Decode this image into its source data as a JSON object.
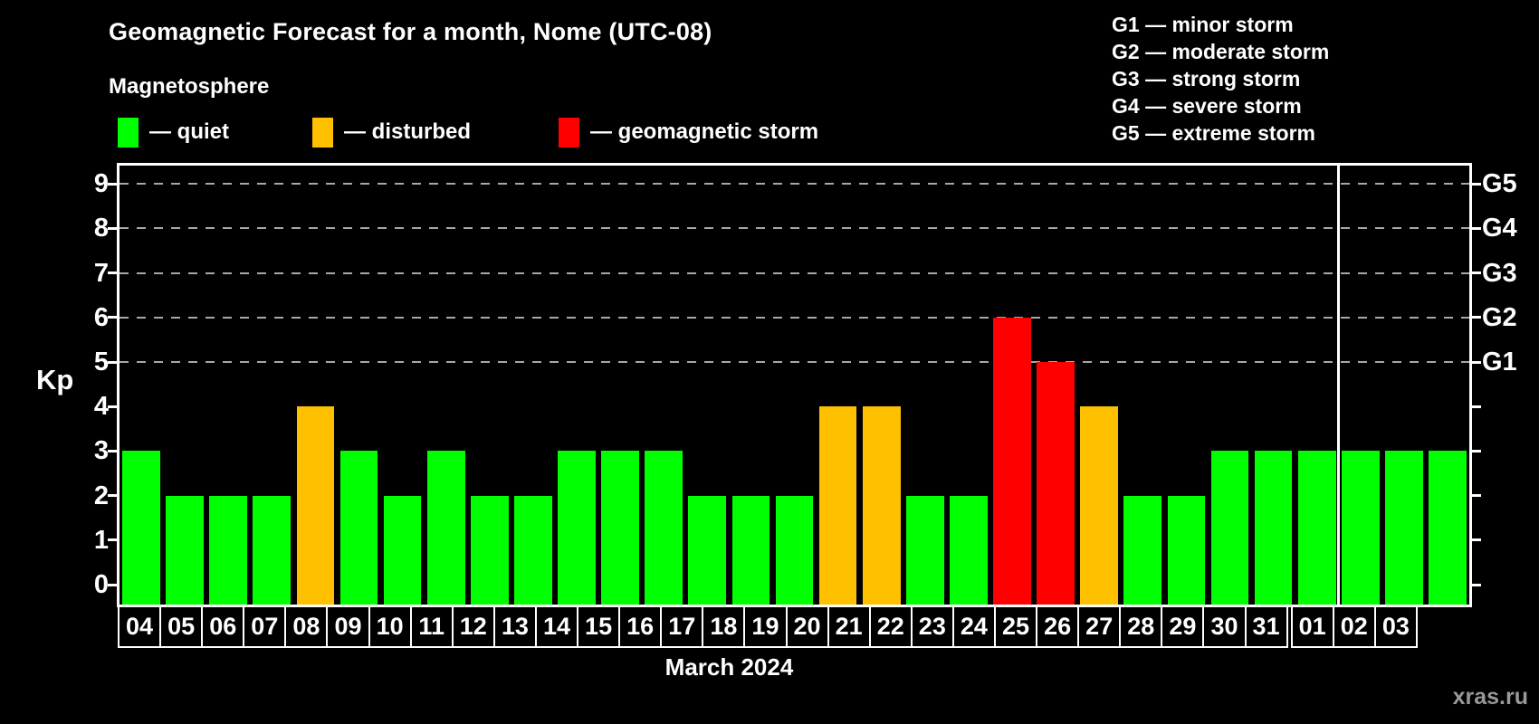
{
  "header": {
    "title": "Geomagnetic Forecast for a month, Nome (UTC-08)",
    "subtitle": "Magnetosphere"
  },
  "legend": {
    "items": [
      {
        "name": "quiet",
        "color": "#00ff00",
        "label": "— quiet"
      },
      {
        "name": "disturbed",
        "color": "#ffc000",
        "label": "— disturbed"
      },
      {
        "name": "storm",
        "color": "#ff0000",
        "label": "— geomagnetic storm"
      }
    ]
  },
  "storm_scale_legend": {
    "lines": [
      "G1 — minor storm",
      "G2 — moderate storm",
      "G3 — strong storm",
      "G4 — severe storm",
      "G5 — extreme storm"
    ]
  },
  "chart_data": {
    "type": "bar",
    "title": "Geomagnetic Forecast for a month, Nome (UTC-08)",
    "subtitle": "Magnetosphere",
    "ylabel": "Kp",
    "xlabel": "March 2024",
    "ylim": [
      0,
      9
    ],
    "yticks": [
      0,
      1,
      2,
      3,
      4,
      5,
      6,
      7,
      8,
      9
    ],
    "gridlines_at_kp": [
      5,
      6,
      7,
      8,
      9
    ],
    "grid": "dashed-horizontal",
    "right_axis": {
      "labels": [
        "G1",
        "G2",
        "G3",
        "G4",
        "G5"
      ],
      "at_kp": [
        5,
        6,
        7,
        8,
        9
      ]
    },
    "categories": [
      "04",
      "05",
      "06",
      "07",
      "08",
      "09",
      "10",
      "11",
      "12",
      "13",
      "14",
      "15",
      "16",
      "17",
      "18",
      "19",
      "20",
      "21",
      "22",
      "23",
      "24",
      "25",
      "26",
      "27",
      "28",
      "29",
      "30",
      "31",
      "01",
      "02",
      "03"
    ],
    "values": [
      3,
      2,
      2,
      2,
      4,
      3,
      2,
      3,
      2,
      2,
      3,
      3,
      3,
      2,
      2,
      2,
      4,
      4,
      2,
      2,
      6,
      5,
      4,
      2,
      2,
      3,
      3,
      3,
      3,
      3,
      3
    ],
    "statuses": [
      "quiet",
      "quiet",
      "quiet",
      "quiet",
      "disturbed",
      "quiet",
      "quiet",
      "quiet",
      "quiet",
      "quiet",
      "quiet",
      "quiet",
      "quiet",
      "quiet",
      "quiet",
      "quiet",
      "disturbed",
      "disturbed",
      "quiet",
      "quiet",
      "storm",
      "storm",
      "disturbed",
      "quiet",
      "quiet",
      "quiet",
      "quiet",
      "quiet",
      "quiet",
      "quiet",
      "quiet"
    ],
    "month_boundary_after_index": 27,
    "colors": {
      "quiet": "#00ff00",
      "disturbed": "#ffc000",
      "storm": "#ff0000"
    },
    "color_rules": {
      "quiet_max_kp": 3,
      "disturbed_kp": 4,
      "storm_min_kp": 5
    },
    "legend_position": "top-left"
  },
  "footer": {
    "month_label": "March 2024",
    "watermark": "xras.ru"
  }
}
